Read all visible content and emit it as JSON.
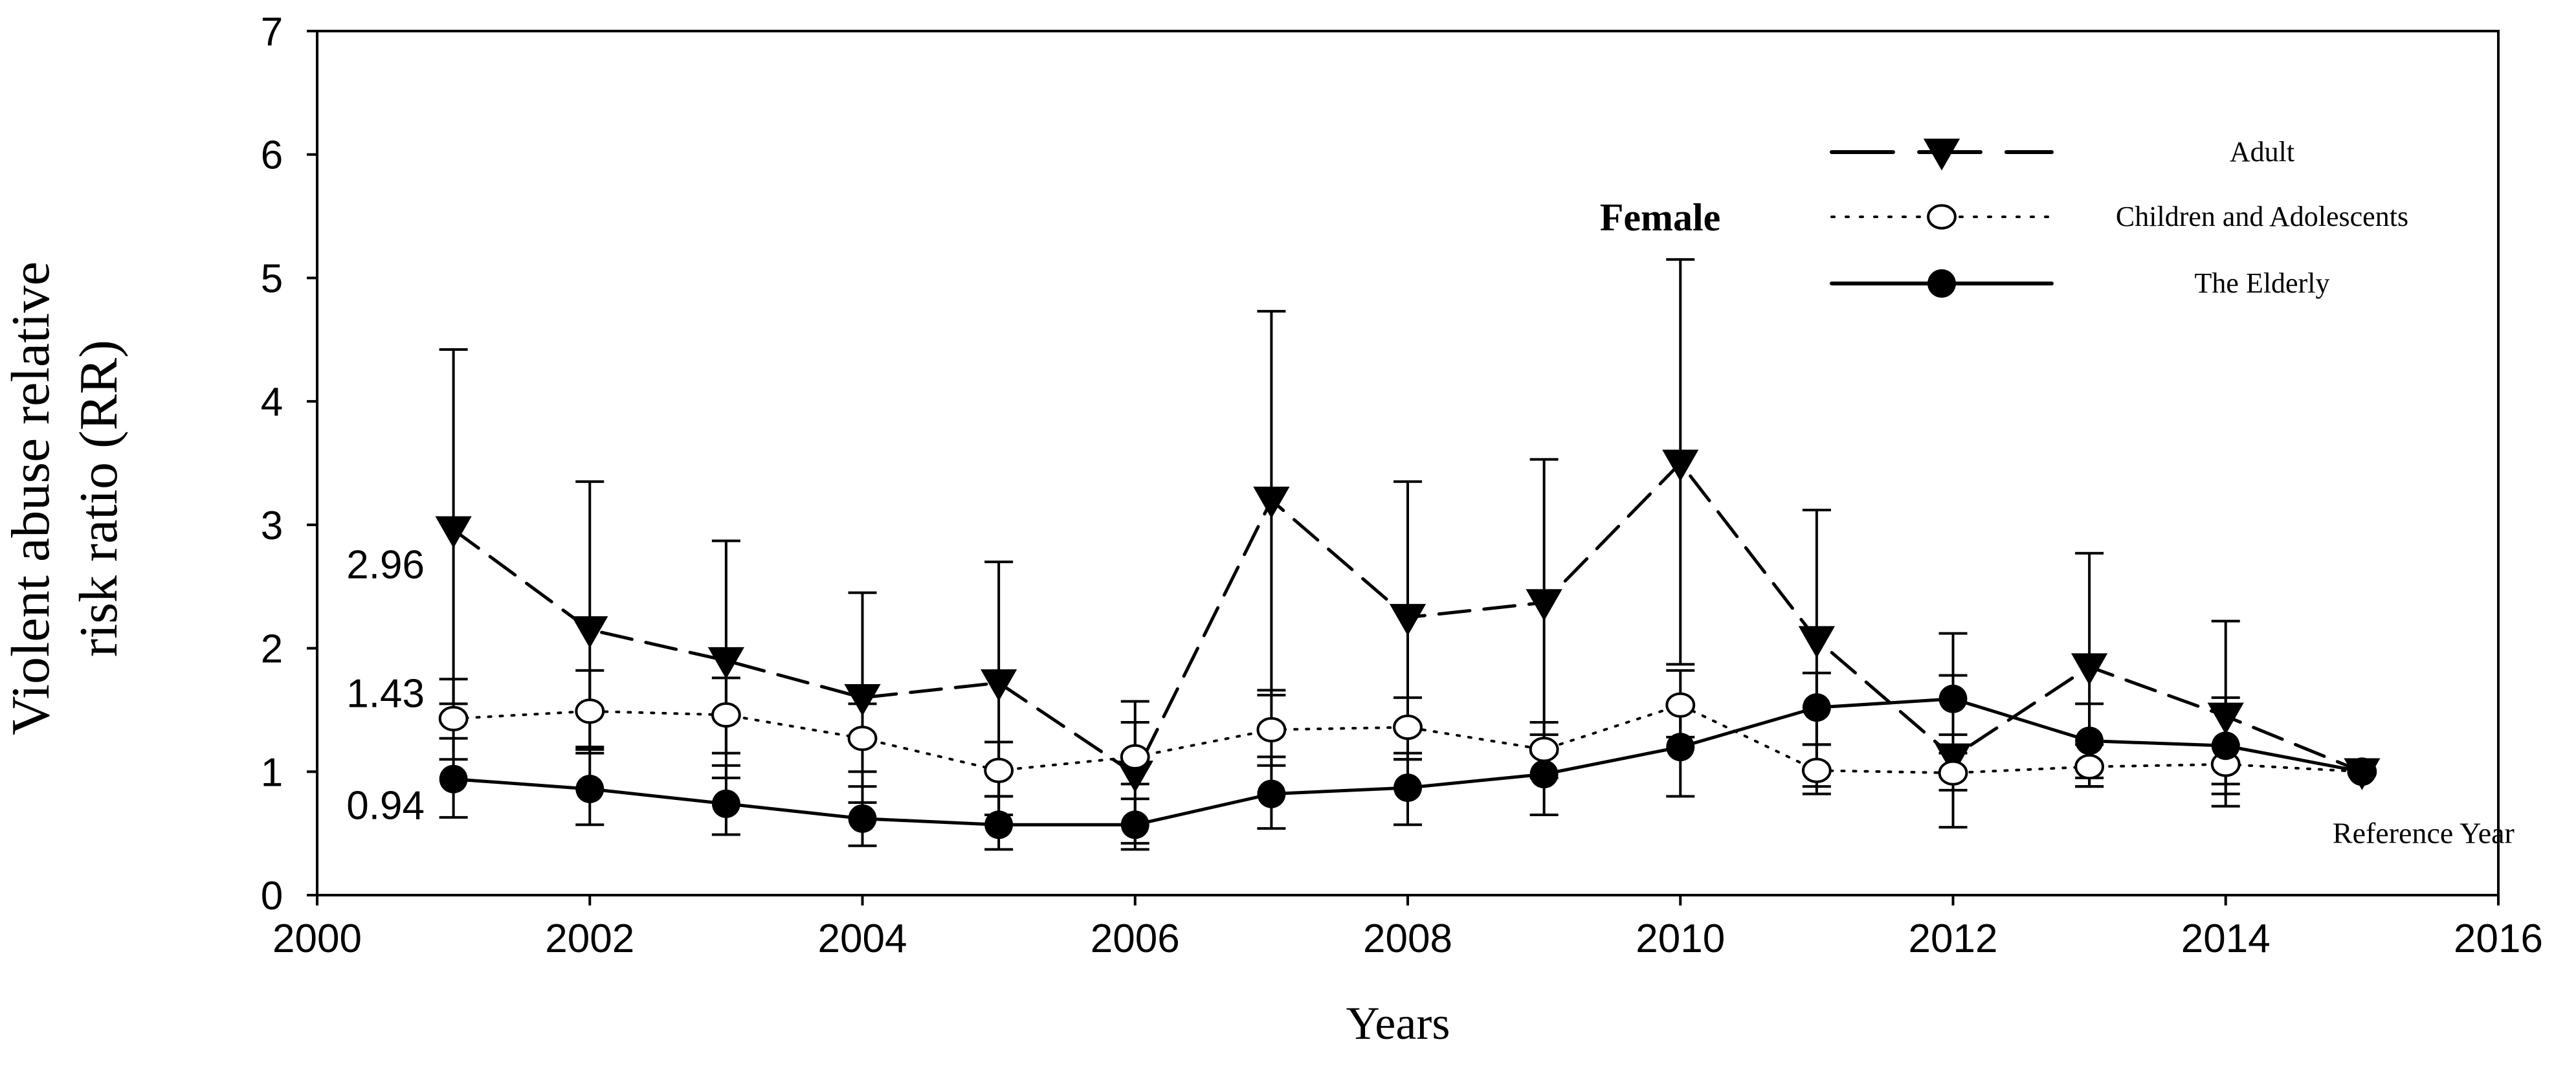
{
  "chart_data": {
    "type": "line",
    "title": "Female",
    "xlabel": "Years",
    "ylabel_lines": [
      "Violent abuse relative",
      "risk ratio (RR)"
    ],
    "xlim": [
      2000,
      2016
    ],
    "ylim": [
      0,
      7
    ],
    "x_ticks": [
      2000,
      2002,
      2004,
      2006,
      2008,
      2010,
      2012,
      2014,
      2016
    ],
    "y_ticks": [
      0,
      1,
      2,
      3,
      4,
      5,
      6,
      7
    ],
    "x": [
      2001,
      2002,
      2003,
      2004,
      2005,
      2006,
      2007,
      2008,
      2009,
      2010,
      2011,
      2012,
      2013,
      2014,
      2015
    ],
    "legend_position": "top-right",
    "series": [
      {
        "name": "Adult",
        "line_style": "dashed",
        "marker": "filled-down-triangle",
        "values": [
          2.96,
          2.15,
          1.9,
          1.6,
          1.72,
          0.98,
          3.2,
          2.25,
          2.37,
          3.5,
          2.07,
          1.12,
          1.85,
          1.45,
          1.0
        ],
        "err_high": [
          4.42,
          3.35,
          2.87,
          2.45,
          2.7,
          1.57,
          4.73,
          3.35,
          3.53,
          5.15,
          3.12,
          2.12,
          2.77,
          2.22,
          1.0
        ],
        "err_low": [
          1.55,
          1.2,
          0.95,
          0.75,
          0.65,
          0.42,
          1.62,
          1.1,
          1.15,
          1.87,
          0.88,
          0.55,
          0.88,
          0.72,
          1.0
        ]
      },
      {
        "name": "Children and Adolescents",
        "line_style": "dotted",
        "marker": "open-circle",
        "values": [
          1.43,
          1.49,
          1.46,
          1.27,
          1.01,
          1.12,
          1.34,
          1.36,
          1.18,
          1.54,
          1.01,
          0.99,
          1.04,
          1.06,
          1.0
        ],
        "err_high": [
          1.75,
          1.82,
          1.76,
          1.55,
          1.24,
          1.4,
          1.66,
          1.6,
          1.4,
          1.82,
          1.22,
          1.15,
          1.22,
          1.22,
          1.0
        ],
        "err_low": [
          1.1,
          1.15,
          1.15,
          1.0,
          0.8,
          0.9,
          1.05,
          1.1,
          0.95,
          1.28,
          0.82,
          0.85,
          0.88,
          0.9,
          1.0
        ]
      },
      {
        "name": "The Elderly",
        "line_style": "solid",
        "marker": "filled-circle",
        "values": [
          0.94,
          0.86,
          0.74,
          0.62,
          0.57,
          0.57,
          0.82,
          0.87,
          0.98,
          1.2,
          1.52,
          1.59,
          1.25,
          1.21,
          1.0
        ],
        "err_high": [
          1.27,
          1.18,
          1.05,
          0.88,
          0.8,
          0.78,
          1.12,
          1.15,
          1.3,
          1.52,
          1.8,
          1.78,
          1.55,
          1.6,
          1.0
        ],
        "err_low": [
          0.63,
          0.57,
          0.49,
          0.4,
          0.37,
          0.37,
          0.54,
          0.57,
          0.65,
          0.8,
          1.22,
          1.3,
          0.95,
          0.82,
          1.0
        ]
      }
    ],
    "annotations": [
      {
        "text": "2.96",
        "x": 2001,
        "y": 2.96
      },
      {
        "text": "1.43",
        "x": 2001,
        "y": 1.43
      },
      {
        "text": "0.94",
        "x": 2001,
        "y": 0.94
      },
      {
        "text": "Reference Year",
        "x": 2015,
        "y": 1.0
      }
    ]
  }
}
